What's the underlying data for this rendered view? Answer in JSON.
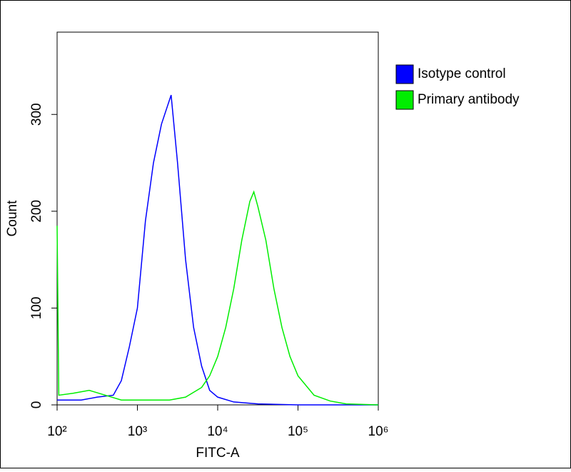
{
  "chart_data": {
    "type": "line",
    "x_label": "FITC-A",
    "y_label": "Count",
    "xlim": [
      100,
      1000000
    ],
    "log_x": true,
    "xticks": [
      {
        "value": 100,
        "label": "10²"
      },
      {
        "value": 1000,
        "label": "10³"
      },
      {
        "value": 10000,
        "label": "10⁴"
      },
      {
        "value": 100000,
        "label": "10⁵"
      },
      {
        "value": 1000000,
        "label": "10⁶"
      }
    ],
    "ylim": [
      0,
      385
    ],
    "yticks": [
      0,
      100,
      200,
      300
    ],
    "legend": "upper right",
    "series": [
      {
        "name": "Isotype control",
        "color": "#0000ff",
        "x": [
          100,
          200,
          316,
          501,
          631,
          794,
          1000,
          1259,
          1585,
          1995,
          2512,
          2630,
          3162,
          3981,
          5012,
          6310,
          7943,
          10000,
          15849,
          31623,
          100000,
          1000000
        ],
        "values": [
          5,
          5,
          8,
          10,
          25,
          60,
          100,
          190,
          250,
          290,
          315,
          320,
          250,
          150,
          80,
          40,
          15,
          8,
          3,
          1,
          0,
          0
        ]
      },
      {
        "name": "Primary antibody",
        "color": "#00ee00",
        "x": [
          100,
          105,
          158,
          251,
          398,
          631,
          1000,
          1585,
          2512,
          3981,
          6310,
          7943,
          10000,
          12589,
          15849,
          19953,
          25119,
          28184,
          31623,
          39811,
          50119,
          63096,
          79433,
          100000,
          158489,
          251189,
          398107,
          1000000
        ],
        "values": [
          185,
          10,
          12,
          15,
          10,
          5,
          5,
          5,
          5,
          8,
          18,
          30,
          50,
          80,
          120,
          170,
          210,
          220,
          205,
          170,
          120,
          80,
          50,
          30,
          10,
          4,
          1,
          0
        ]
      }
    ]
  }
}
